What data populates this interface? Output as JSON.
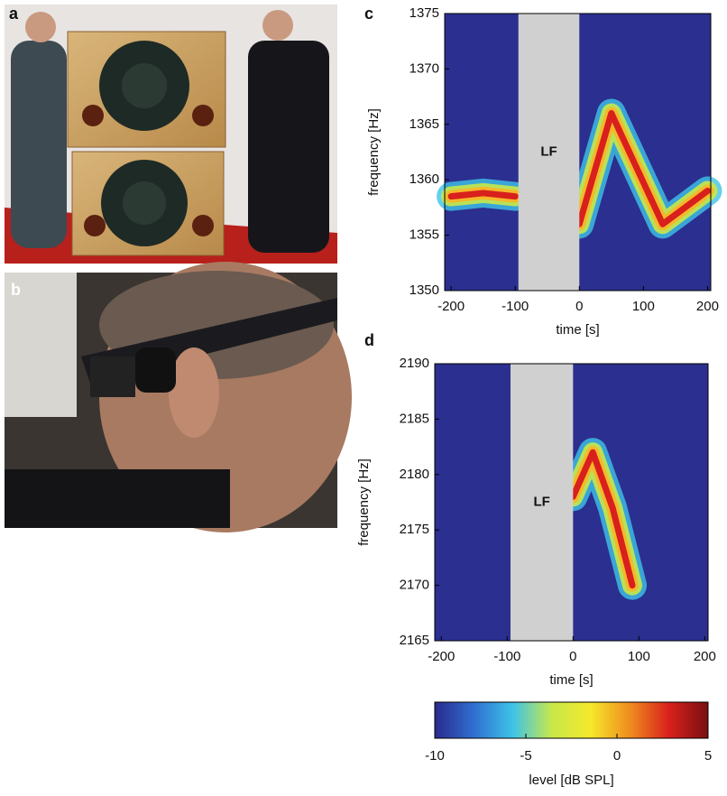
{
  "panel_labels": [
    "a",
    "b"
  ],
  "chart_data": [
    {
      "type": "spectrogram",
      "panel": "c",
      "xlabel": "time [s]",
      "ylabel": "frequency [Hz]",
      "annotation": "LF",
      "xlim": [
        -210,
        205
      ],
      "ylim": [
        1350,
        1375
      ],
      "xticks": [
        -200,
        -100,
        0,
        100,
        200
      ],
      "yticks": [
        1350,
        1355,
        1360,
        1365,
        1370,
        1375
      ],
      "blank_interval": [
        -95,
        0
      ],
      "x": [
        -200,
        -150,
        -100,
        -50,
        0,
        50,
        130,
        200
      ],
      "values": [
        1358.5,
        1358.8,
        1358.5,
        null,
        1356,
        1366,
        1356,
        1359
      ]
    },
    {
      "type": "spectrogram",
      "panel": "d",
      "xlabel": "time [s]",
      "ylabel": "frequency [Hz]",
      "annotation": "LF",
      "xlim": [
        -210,
        205
      ],
      "ylim": [
        2165,
        2190
      ],
      "xticks": [
        -200,
        -100,
        0,
        100,
        200
      ],
      "yticks": [
        2165,
        2170,
        2175,
        2180,
        2185,
        2190
      ],
      "blank_interval": [
        -95,
        0
      ],
      "x": [
        0,
        30,
        60,
        90
      ],
      "values": [
        2178,
        2182,
        2177,
        2170
      ]
    },
    {
      "type": "colorbar",
      "xlabel": "level [dB SPL]",
      "xlim": [
        -10,
        5
      ],
      "xticks": [
        -10,
        -5,
        0,
        5
      ],
      "colors": [
        "#2a2a8c",
        "#2f6fd0",
        "#3ec3e8",
        "#c8e84a",
        "#f5e82a",
        "#f08c1e",
        "#d8201c",
        "#7a0f10"
      ]
    }
  ]
}
